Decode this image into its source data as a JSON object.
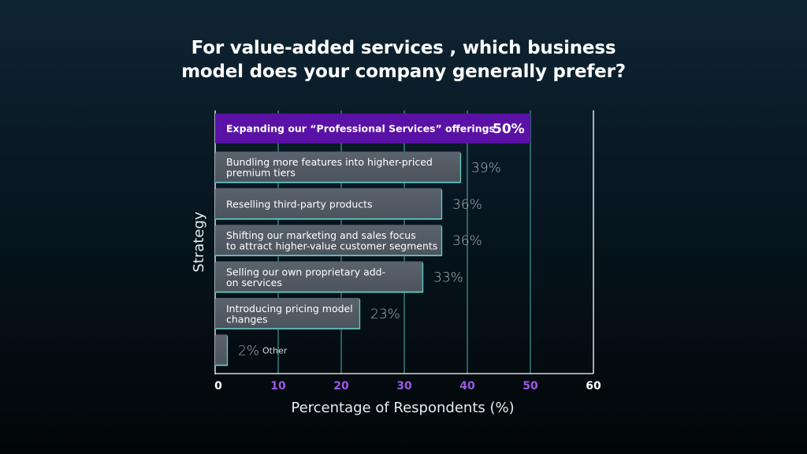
{
  "title_line1": "For value-added services , which business",
  "title_line2": "model does your company generally prefer?",
  "colors": {
    "highlight_bar": "#5a11a6",
    "bar_fill": "#4b535d",
    "gridline": "#5fd0c7",
    "purple_tick": "#9c57e8"
  },
  "chart_data": {
    "type": "bar",
    "orientation": "horizontal",
    "xlabel": "Percentage of Respondents (%)",
    "ylabel": "Strategy",
    "xlim": [
      0,
      60
    ],
    "xticks": [
      "0",
      "10",
      "20",
      "30",
      "40",
      "50",
      "60"
    ],
    "grid": true,
    "bars": [
      {
        "lines": [
          "Expanding our “Professional Services” offerings"
        ],
        "value": 50,
        "value_label": "50%",
        "highlight": true
      },
      {
        "lines": [
          "Bundling more features into higher-priced",
          "premium tiers"
        ],
        "value": 39,
        "value_label": "39%"
      },
      {
        "lines": [
          "Reselling third-party products"
        ],
        "value": 36,
        "value_label": "36%"
      },
      {
        "lines": [
          "Shifting our marketing and sales focus",
          "to attract higher-value customer segments"
        ],
        "value": 36,
        "value_label": "36%"
      },
      {
        "lines": [
          "Selling our own proprietary add-",
          "on services"
        ],
        "value": 33,
        "value_label": "33%"
      },
      {
        "lines": [
          "Introducing pricing model",
          "changes"
        ],
        "value": 23,
        "value_label": "23%"
      },
      {
        "lines": [],
        "value": 2,
        "value_label": "2%",
        "outside_label": "Other"
      }
    ]
  }
}
